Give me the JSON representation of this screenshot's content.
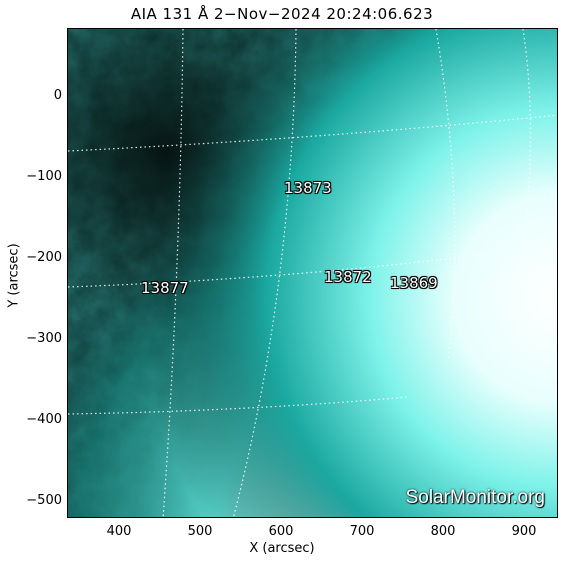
{
  "title": "AIA 131 Å  2−Nov−2024 20:24:06.623",
  "x_axis": {
    "label": "X (arcsec)",
    "ticks": [
      "400",
      "500",
      "600",
      "700",
      "800",
      "900"
    ]
  },
  "y_axis": {
    "label": "Y (arcsec)",
    "ticks": [
      "0",
      "−100",
      "−200",
      "−300",
      "−400",
      "−500"
    ]
  },
  "active_regions": [
    "13873",
    "13872",
    "13869",
    "13877"
  ],
  "watermark": "SolarMonitor.org",
  "colors": {
    "channel_tint": "#00e5d8",
    "background": "#0b2a28"
  }
}
